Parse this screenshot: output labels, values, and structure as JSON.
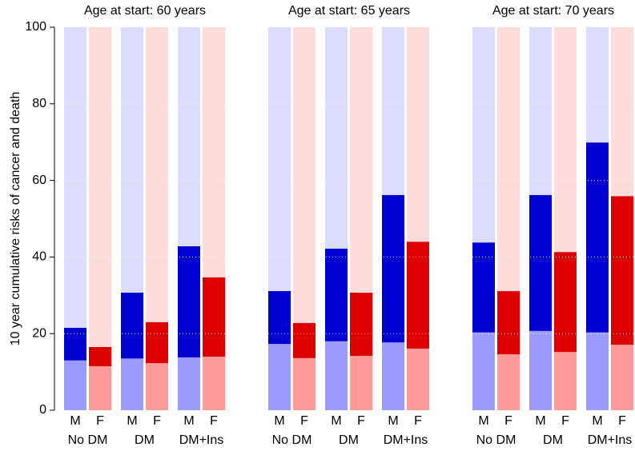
{
  "chart_data": [
    {
      "type": "stacked-bar",
      "title": "Age at start: 60 years",
      "ylabel": "10 year cumulative risks of cancer and death",
      "ylim": [
        0,
        100
      ],
      "yticks": [
        0,
        20,
        40,
        60,
        80,
        100
      ],
      "grid": true,
      "groups": [
        "No DM",
        "DM",
        "DM+Ins"
      ],
      "categories": [
        "M",
        "F",
        "M",
        "F",
        "M",
        "F"
      ],
      "series": [
        {
          "colors": [
            "#9a9aff",
            "#ff9a9a",
            "#9a9aff",
            "#ff9a9a",
            "#9a9aff",
            "#ff9a9a"
          ],
          "values": [
            13,
            11.5,
            13.5,
            12.3,
            13.8,
            14
          ]
        },
        {
          "colors": [
            "#0000d0",
            "#dd0000",
            "#0000d0",
            "#dd0000",
            "#0000d0",
            "#dd0000"
          ],
          "values": [
            8.5,
            5,
            17.2,
            10.7,
            29,
            20.7
          ]
        },
        {
          "colors": [
            "#dcdcff",
            "#ffdcdc",
            "#dcdcff",
            "#ffdcdc",
            "#dcdcff",
            "#ffdcdc"
          ],
          "values": [
            78.5,
            83.5,
            69.3,
            77,
            57.2,
            65.3
          ]
        }
      ]
    },
    {
      "type": "stacked-bar",
      "title": "Age at start: 65 years",
      "ylim": [
        0,
        100
      ],
      "grid": true,
      "groups": [
        "No DM",
        "DM",
        "DM+Ins"
      ],
      "categories": [
        "M",
        "F",
        "M",
        "F",
        "M",
        "F"
      ],
      "series": [
        {
          "colors": [
            "#9a9aff",
            "#ff9a9a",
            "#9a9aff",
            "#ff9a9a",
            "#9a9aff",
            "#ff9a9a"
          ],
          "values": [
            17.3,
            13.6,
            18,
            14.2,
            17.7,
            16.1
          ]
        },
        {
          "colors": [
            "#0000d0",
            "#dd0000",
            "#0000d0",
            "#dd0000",
            "#0000d0",
            "#dd0000"
          ],
          "values": [
            13.8,
            9.2,
            24.2,
            16.5,
            38.5,
            27.9
          ]
        },
        {
          "colors": [
            "#dcdcff",
            "#ffdcdc",
            "#dcdcff",
            "#ffdcdc",
            "#dcdcff",
            "#ffdcdc"
          ],
          "values": [
            68.9,
            77.2,
            57.8,
            69.3,
            43.8,
            56
          ]
        }
      ]
    },
    {
      "type": "stacked-bar",
      "title": "Age at start: 70 years",
      "ylim": [
        0,
        100
      ],
      "grid": true,
      "groups": [
        "No DM",
        "DM",
        "DM+Ins"
      ],
      "categories": [
        "M",
        "F",
        "M",
        "F",
        "M",
        "F"
      ],
      "series": [
        {
          "colors": [
            "#9a9aff",
            "#ff9a9a",
            "#9a9aff",
            "#ff9a9a",
            "#9a9aff",
            "#ff9a9a"
          ],
          "values": [
            20.3,
            14.6,
            20.7,
            15.2,
            20.3,
            17.1
          ]
        },
        {
          "colors": [
            "#0000d0",
            "#dd0000",
            "#0000d0",
            "#dd0000",
            "#0000d0",
            "#dd0000"
          ],
          "values": [
            23.5,
            16.5,
            35.5,
            26.1,
            49.6,
            38.8
          ]
        },
        {
          "colors": [
            "#dcdcff",
            "#ffdcdc",
            "#dcdcff",
            "#ffdcdc",
            "#dcdcff",
            "#ffdcdc"
          ],
          "values": [
            56.2,
            68.9,
            43.8,
            58.7,
            30.1,
            44.1
          ]
        }
      ]
    }
  ]
}
